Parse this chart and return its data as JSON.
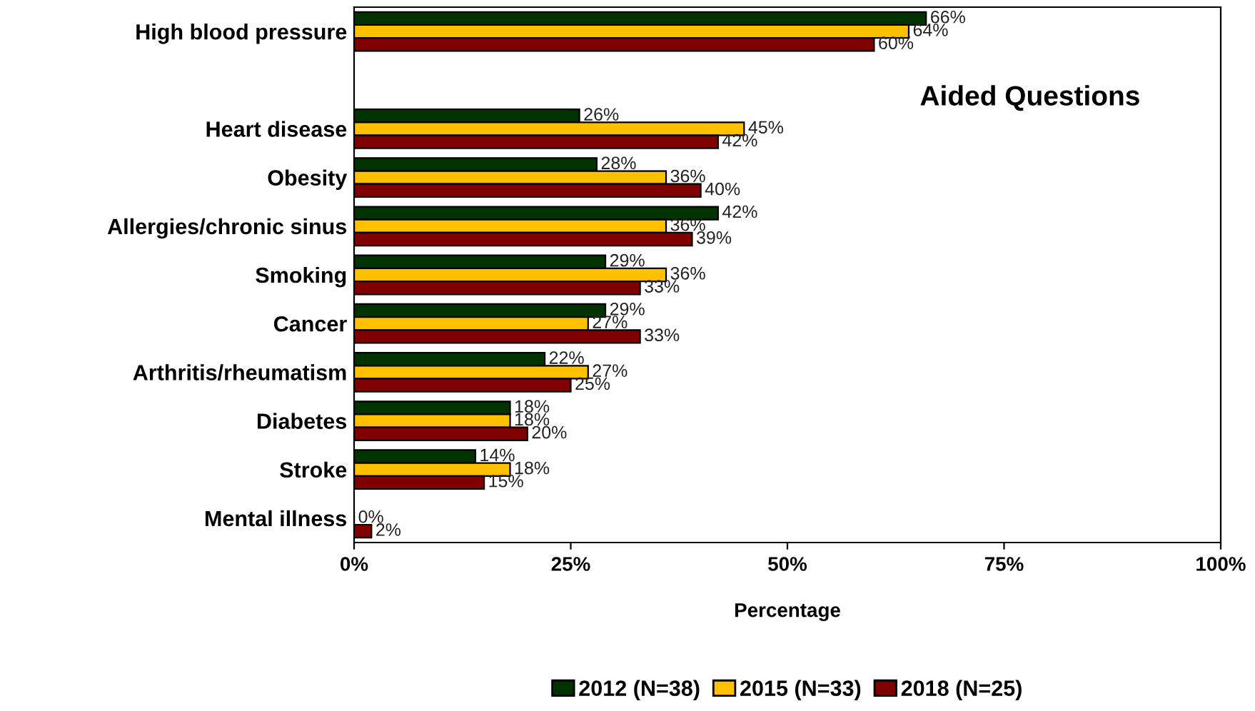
{
  "chart_data": {
    "type": "bar",
    "orientation": "horizontal",
    "categories": [
      "High blood pressure",
      null,
      "Heart disease",
      "Obesity",
      "Allergies/chronic sinus",
      "Smoking",
      "Cancer",
      "Arthritis/rheumatism",
      "Diabetes",
      "Stroke",
      "Mental illness"
    ],
    "series": [
      {
        "name": "2012 (N=38)",
        "color": "#003300",
        "values": [
          66,
          null,
          26,
          28,
          42,
          29,
          29,
          22,
          18,
          14,
          null
        ],
        "value_labels": [
          "66%",
          null,
          "26%",
          "28%",
          "42%",
          "29%",
          "29%",
          "22%",
          "18%",
          "14%",
          null
        ]
      },
      {
        "name": "2015 (N=33)",
        "color": "#ffc000",
        "values": [
          64,
          null,
          45,
          36,
          36,
          36,
          27,
          27,
          18,
          18,
          0
        ],
        "value_labels": [
          "64%",
          null,
          "45%",
          "36%",
          "36%",
          "36%",
          "27%",
          "27%",
          "18%",
          "18%",
          "0%"
        ]
      },
      {
        "name": "2018 (N=25)",
        "color": "#800000",
        "values": [
          60,
          null,
          42,
          40,
          39,
          33,
          33,
          25,
          20,
          15,
          2
        ],
        "value_labels": [
          "60%",
          null,
          "42%",
          "40%",
          "39%",
          "33%",
          "33%",
          "25%",
          "20%",
          "15%",
          "2%"
        ]
      }
    ],
    "xlim": [
      0,
      100
    ],
    "xticks": [
      {
        "value": 0,
        "label": "0%"
      },
      {
        "value": 25,
        "label": "25%"
      },
      {
        "value": 50,
        "label": "50%"
      },
      {
        "value": 75,
        "label": "75%"
      },
      {
        "value": 100,
        "label": "100%"
      }
    ],
    "xlabel": "Percentage",
    "annotations": [
      "Aided Questions"
    ],
    "legend": "bottom",
    "grid": false
  }
}
